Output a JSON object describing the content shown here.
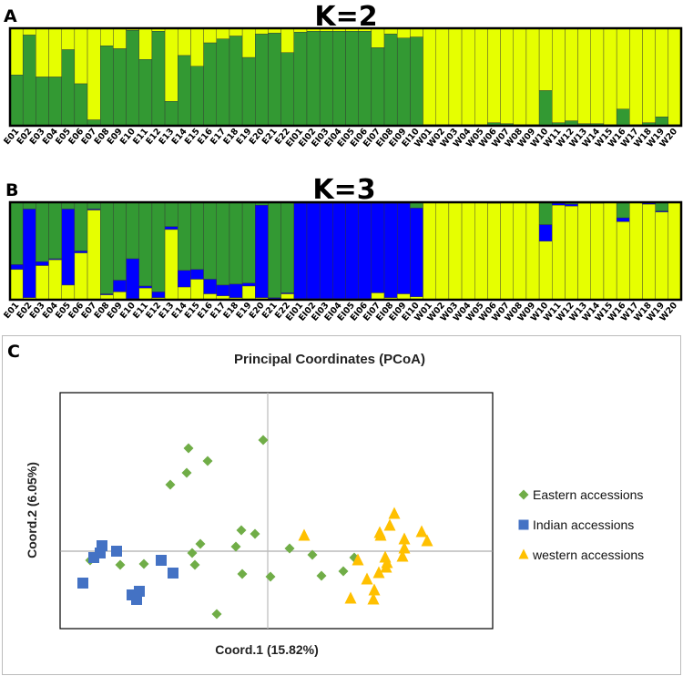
{
  "panel_labels": {
    "a": "A",
    "b": "B",
    "c": "C"
  },
  "chart_data": [
    {
      "type": "bar",
      "stacked": true,
      "title": "K=2",
      "categories": [
        "E01",
        "E02",
        "E03",
        "E04",
        "E05",
        "E06",
        "E07",
        "E08",
        "E09",
        "E10",
        "E11",
        "E12",
        "E13",
        "E14",
        "E15",
        "E16",
        "E17",
        "E18",
        "E19",
        "E20",
        "E21",
        "E22",
        "EI01",
        "EI02",
        "EI03",
        "EI04",
        "EI05",
        "EI06",
        "EI07",
        "EI08",
        "EI09",
        "EI10",
        "W01",
        "W02",
        "W03",
        "W04",
        "W05",
        "W06",
        "W07",
        "W08",
        "W09",
        "W10",
        "W11",
        "W12",
        "W13",
        "W14",
        "W15",
        "W16",
        "W17",
        "W18",
        "W19",
        "W20"
      ],
      "ylim": [
        0,
        1
      ],
      "series": [
        {
          "name": "cluster-green",
          "color": "#339933",
          "values": [
            0.52,
            0.93,
            0.5,
            0.5,
            0.78,
            0.43,
            0.06,
            0.82,
            0.79,
            0.98,
            0.68,
            0.97,
            0.25,
            0.72,
            0.61,
            0.85,
            0.89,
            0.92,
            0.7,
            0.94,
            0.95,
            0.75,
            0.96,
            0.97,
            0.97,
            0.97,
            0.97,
            0.97,
            0.8,
            0.94,
            0.9,
            0.91,
            0.01,
            0.01,
            0.01,
            0.01,
            0.01,
            0.03,
            0.02,
            0.01,
            0.01,
            0.36,
            0.03,
            0.05,
            0.02,
            0.02,
            0.01,
            0.17,
            0.01,
            0.03,
            0.09,
            0.01
          ]
        },
        {
          "name": "cluster-yellow",
          "color": "#e6ff00",
          "values": [
            0.48,
            0.07,
            0.5,
            0.5,
            0.22,
            0.57,
            0.94,
            0.18,
            0.21,
            0.02,
            0.32,
            0.03,
            0.75,
            0.28,
            0.39,
            0.15,
            0.11,
            0.08,
            0.3,
            0.06,
            0.05,
            0.25,
            0.04,
            0.03,
            0.03,
            0.03,
            0.03,
            0.03,
            0.2,
            0.06,
            0.1,
            0.09,
            0.99,
            0.99,
            0.99,
            0.99,
            0.99,
            0.97,
            0.98,
            0.99,
            0.99,
            0.64,
            0.97,
            0.95,
            0.98,
            0.98,
            0.99,
            0.83,
            0.99,
            0.97,
            0.91,
            0.99
          ]
        }
      ]
    },
    {
      "type": "bar",
      "stacked": true,
      "title": "K=3",
      "categories": [
        "E01",
        "E02",
        "E03",
        "E04",
        "E05",
        "E06",
        "E07",
        "E08",
        "E09",
        "E10",
        "E11",
        "E12",
        "E13",
        "E14",
        "E15",
        "E16",
        "E17",
        "E18",
        "E19",
        "E20",
        "E21",
        "E22",
        "EI01",
        "EI02",
        "EI03",
        "EI04",
        "EI05",
        "EI06",
        "EI07",
        "EI08",
        "EI09",
        "EI10",
        "W01",
        "W02",
        "W03",
        "W04",
        "W05",
        "W06",
        "W07",
        "W08",
        "W09",
        "W10",
        "W11",
        "W12",
        "W13",
        "W14",
        "W15",
        "W16",
        "W17",
        "W18",
        "W19",
        "W20"
      ],
      "ylim": [
        0,
        1
      ],
      "series": [
        {
          "name": "cluster-yellow",
          "color": "#e6ff00",
          "values": [
            0.31,
            0.02,
            0.35,
            0.41,
            0.15,
            0.48,
            0.92,
            0.05,
            0.08,
            0.01,
            0.12,
            0.02,
            0.72,
            0.13,
            0.21,
            0.06,
            0.04,
            0.02,
            0.14,
            0.02,
            0.01,
            0.06,
            0.01,
            0.01,
            0.01,
            0.01,
            0.01,
            0.01,
            0.07,
            0.02,
            0.06,
            0.03,
            1,
            1,
            1,
            1,
            1,
            0.99,
            1,
            1,
            1,
            0.6,
            0.97,
            0.96,
            0.99,
            0.99,
            1,
            0.8,
            1,
            0.98,
            0.9,
            1
          ]
        },
        {
          "name": "cluster-blue",
          "color": "#0000ff",
          "values": [
            0.05,
            0.91,
            0.04,
            0.01,
            0.78,
            0.02,
            0.01,
            0.01,
            0.12,
            0.41,
            0.02,
            0.06,
            0.03,
            0.17,
            0.1,
            0.15,
            0.11,
            0.14,
            0.03,
            0.95,
            0.01,
            0.01,
            0.98,
            0.98,
            0.98,
            0.98,
            0.98,
            0.98,
            0.92,
            0.97,
            0.93,
            0.91,
            0,
            0,
            0,
            0,
            0,
            0.01,
            0,
            0,
            0,
            0.17,
            0.02,
            0.02,
            0.01,
            0.01,
            0,
            0.04,
            0,
            0.01,
            0.01,
            0
          ]
        },
        {
          "name": "cluster-green",
          "color": "#339933",
          "values": [
            0.64,
            0.07,
            0.61,
            0.58,
            0.07,
            0.5,
            0.07,
            0.94,
            0.8,
            0.58,
            0.86,
            0.92,
            0.25,
            0.7,
            0.69,
            0.79,
            0.85,
            0.84,
            0.83,
            0.03,
            0.98,
            0.93,
            0.01,
            0.01,
            0.01,
            0.01,
            0.01,
            0.01,
            0.01,
            0.01,
            0.01,
            0.06,
            0,
            0,
            0,
            0,
            0,
            0,
            0,
            0,
            0,
            0.23,
            0.01,
            0.02,
            0,
            0,
            0,
            0.16,
            0,
            0.01,
            0.09,
            0
          ]
        }
      ]
    },
    {
      "type": "scatter",
      "title": "Principal Coordinates (PCoA)",
      "xlabel": "Coord.1 (15.82%)",
      "ylabel": "Coord.2 (6.05%)",
      "xlim": [
        -4.56,
        4.94
      ],
      "ylim": [
        -1.7,
        3.48
      ],
      "grid": false,
      "zero_lines": true,
      "legend_position": "right",
      "series": [
        {
          "name": "Eastern accessions",
          "color": "#70ad47",
          "marker": "diamond",
          "points": [
            [
              -0.1,
              2.44
            ],
            [
              -1.74,
              2.26
            ],
            [
              -1.32,
              1.98
            ],
            [
              -1.78,
              1.72
            ],
            [
              -2.14,
              1.46
            ],
            [
              -0.58,
              0.46
            ],
            [
              -0.28,
              0.38
            ],
            [
              -1.48,
              0.16
            ],
            [
              -0.7,
              0.1
            ],
            [
              -1.66,
              -0.04
            ],
            [
              -3.9,
              -0.2
            ],
            [
              -3.24,
              -0.3
            ],
            [
              -2.72,
              -0.28
            ],
            [
              -1.6,
              -0.3
            ],
            [
              -0.56,
              -0.5
            ],
            [
              0.06,
              -0.56
            ],
            [
              -1.12,
              -1.38
            ],
            [
              0.48,
              0.06
            ],
            [
              0.98,
              -0.08
            ],
            [
              1.9,
              -0.14
            ],
            [
              1.66,
              -0.44
            ],
            [
              1.18,
              -0.54
            ]
          ]
        },
        {
          "name": "Indian accessions",
          "color": "#4472c4",
          "marker": "square",
          "points": [
            [
              -3.64,
              0.12
            ],
            [
              -3.68,
              -0.04
            ],
            [
              -3.82,
              -0.14
            ],
            [
              -3.32,
              0
            ],
            [
              -2.34,
              -0.2
            ],
            [
              -2.08,
              -0.48
            ],
            [
              -4.06,
              -0.7
            ],
            [
              -2.82,
              -0.88
            ],
            [
              -2.98,
              -0.96
            ],
            [
              -2.88,
              -1.06
            ]
          ]
        },
        {
          "name": "western accessions",
          "color": "#ffc000",
          "marker": "triangle",
          "points": [
            [
              2.78,
              0.82
            ],
            [
              2.68,
              0.56
            ],
            [
              2.46,
              0.4
            ],
            [
              2.48,
              0.34
            ],
            [
              0.8,
              0.34
            ],
            [
              3.38,
              0.42
            ],
            [
              3.5,
              0.22
            ],
            [
              3.0,
              0.26
            ],
            [
              3.0,
              0.06
            ],
            [
              2.96,
              -0.12
            ],
            [
              2.58,
              -0.14
            ],
            [
              1.98,
              -0.2
            ],
            [
              2.62,
              -0.26
            ],
            [
              2.6,
              -0.36
            ],
            [
              2.44,
              -0.48
            ],
            [
              2.18,
              -0.62
            ],
            [
              2.34,
              -0.86
            ],
            [
              1.82,
              -1.04
            ],
            [
              2.32,
              -1.06
            ]
          ]
        }
      ]
    }
  ]
}
